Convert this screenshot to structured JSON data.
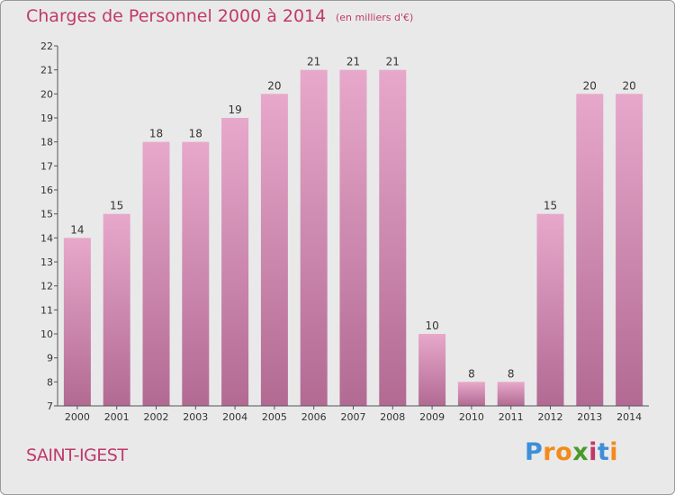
{
  "header": {
    "title": "Charges de Personnel 2000 à 2014",
    "subtitle": "(en milliers d'€)"
  },
  "footer": {
    "location": "SAINT-IGEST",
    "brand": {
      "letters": [
        "P",
        "r",
        "o",
        "x",
        "i",
        "t",
        "i"
      ],
      "colors": [
        "#3d8fd8",
        "#f28a1c",
        "#f28a1c",
        "#4a9a2a",
        "#c0396b",
        "#3d8fd8",
        "#f28a1c"
      ]
    }
  },
  "chart_data": {
    "type": "bar",
    "title": "Charges de Personnel 2000 à 2014",
    "subtitle": "(en milliers d'€)",
    "categories": [
      "2000",
      "2001",
      "2002",
      "2003",
      "2004",
      "2005",
      "2006",
      "2007",
      "2008",
      "2009",
      "2010",
      "2011",
      "2012",
      "2013",
      "2014"
    ],
    "values": [
      14,
      15,
      18,
      18,
      19,
      20,
      21,
      21,
      21,
      10,
      8,
      8,
      15,
      20,
      20
    ],
    "ylim": [
      7,
      22
    ],
    "yticks": [
      7,
      8,
      9,
      10,
      11,
      12,
      13,
      14,
      15,
      16,
      17,
      18,
      19,
      20,
      21,
      22
    ],
    "grid": false,
    "bar_color": "#cf7fab",
    "xlabel": "",
    "ylabel": ""
  }
}
